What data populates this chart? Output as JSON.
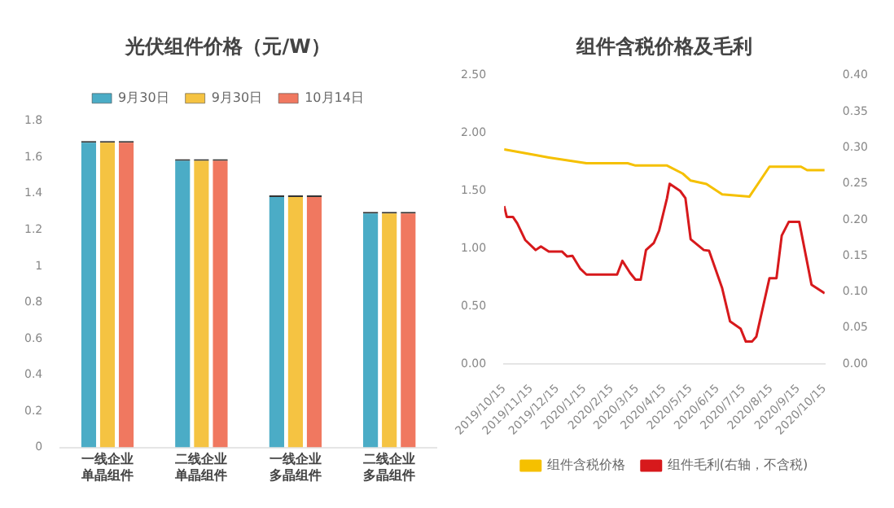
{
  "chart_data": [
    {
      "type": "bar",
      "title": "光伏组件价格（元/W）",
      "categories": [
        "一线企业单晶组件",
        "二线企业单晶组件",
        "一线企业多晶组件",
        "二线企业多晶组件"
      ],
      "series": [
        {
          "name": "9月30日",
          "color": "#4bacc6",
          "values": [
            1.69,
            1.59,
            1.39,
            1.3
          ]
        },
        {
          "name": "9月30日",
          "color": "#f5c342",
          "values": [
            1.69,
            1.59,
            1.39,
            1.3
          ]
        },
        {
          "name": "10月14日",
          "color": "#f07860",
          "values": [
            1.69,
            1.59,
            1.39,
            1.3
          ]
        }
      ],
      "ylim": [
        0,
        1.8
      ],
      "yticks": [
        0,
        0.2,
        0.4,
        0.6,
        0.8,
        1,
        1.2,
        1.4,
        1.6,
        1.8
      ],
      "grid": false,
      "legend": "top"
    },
    {
      "type": "line",
      "title": "组件含税价格及毛利",
      "series": [
        {
          "name": "组件含税价格",
          "color": "#f5c000",
          "x": [
            "2019-10-15",
            "2019-11-20",
            "2019-12-05",
            "2020-01-17",
            "2020-03-04",
            "2020-03-13",
            "2020-04-18",
            "2020-05-06",
            "2020-05-15",
            "2020-06-02",
            "2020-06-20",
            "2020-07-21",
            "2020-08-13",
            "2020-09-18",
            "2020-09-25",
            "2020-10-15"
          ],
          "values": [
            1.86,
            1.81,
            1.79,
            1.74,
            1.74,
            1.72,
            1.72,
            1.65,
            1.59,
            1.56,
            1.47,
            1.45,
            1.71,
            1.71,
            1.68,
            1.68
          ]
        },
        {
          "name": "组件毛利(右轴，不含税)",
          "color": "#d7191c",
          "axis": "y2",
          "x": [
            "2019-10-15",
            "2019-10-18",
            "2019-10-25",
            "2019-10-30",
            "2019-11-08",
            "2019-11-20",
            "2019-11-26",
            "2019-12-05",
            "2019-12-20",
            "2019-12-26",
            "2020-01-01",
            "2020-01-10",
            "2020-01-17",
            "2020-02-21",
            "2020-02-27",
            "2020-03-07",
            "2020-03-13",
            "2020-03-19",
            "2020-03-25",
            "2020-04-03",
            "2020-04-09",
            "2020-04-18",
            "2020-04-21",
            "2020-05-03",
            "2020-05-09",
            "2020-05-15",
            "2020-05-30",
            "2020-06-05",
            "2020-06-20",
            "2020-06-29",
            "2020-07-11",
            "2020-07-17",
            "2020-07-24",
            "2020-07-29",
            "2020-08-13",
            "2020-08-21",
            "2020-08-27",
            "2020-09-04",
            "2020-09-16",
            "2020-09-30",
            "2020-10-15"
          ],
          "values": [
            0.219,
            0.204,
            0.204,
            0.195,
            0.172,
            0.158,
            0.163,
            0.156,
            0.156,
            0.149,
            0.15,
            0.132,
            0.124,
            0.124,
            0.143,
            0.126,
            0.117,
            0.117,
            0.158,
            0.168,
            0.185,
            0.23,
            0.25,
            0.24,
            0.23,
            0.173,
            0.158,
            0.157,
            0.105,
            0.059,
            0.049,
            0.031,
            0.031,
            0.038,
            0.119,
            0.119,
            0.178,
            0.197,
            0.197,
            0.11,
            0.098
          ]
        }
      ],
      "xlim": [
        "2019-10-15",
        "2020-10-15"
      ],
      "xticks": [
        {
          "value": "2019-10-15",
          "label": "2019/10/15"
        },
        {
          "value": "2019-11-15",
          "label": "2019/11/15"
        },
        {
          "value": "2019-12-15",
          "label": "2019/12/15"
        },
        {
          "value": "2020-01-15",
          "label": "2020/1/15"
        },
        {
          "value": "2020-02-15",
          "label": "2020/2/15"
        },
        {
          "value": "2020-03-15",
          "label": "2020/3/15"
        },
        {
          "value": "2020-04-15",
          "label": "2020/4/15"
        },
        {
          "value": "2020-05-15",
          "label": "2020/5/15"
        },
        {
          "value": "2020-06-15",
          "label": "2020/6/15"
        },
        {
          "value": "2020-07-15",
          "label": "2020/7/15"
        },
        {
          "value": "2020-08-15",
          "label": "2020/8/15"
        },
        {
          "value": "2020-09-15",
          "label": "2020/9/15"
        },
        {
          "value": "2020-10-15",
          "label": "2020/10/15"
        }
      ],
      "ylim": [
        0,
        2.5
      ],
      "yticks": [
        {
          "value": 0,
          "label": "0.00"
        },
        {
          "value": 0.5,
          "label": "0.50"
        },
        {
          "value": 1,
          "label": "1.00"
        },
        {
          "value": 1.5,
          "label": "1.50"
        },
        {
          "value": 2,
          "label": "2.00"
        },
        {
          "value": 2.5,
          "label": "2.50"
        }
      ],
      "y2lim": [
        0,
        0.4
      ],
      "y2ticks": [
        {
          "value": 0,
          "label": "0.00"
        },
        {
          "value": 0.05,
          "label": "0.05"
        },
        {
          "value": 0.1,
          "label": "0.10"
        },
        {
          "value": 0.15,
          "label": "0.15"
        },
        {
          "value": 0.2,
          "label": "0.20"
        },
        {
          "value": 0.25,
          "label": "0.25"
        },
        {
          "value": 0.3,
          "label": "0.30"
        },
        {
          "value": 0.35,
          "label": "0.35"
        },
        {
          "value": 0.4,
          "label": "0.40"
        }
      ],
      "grid": false,
      "legend": "bottom",
      "marker": "none",
      "line_style": "solid"
    }
  ]
}
